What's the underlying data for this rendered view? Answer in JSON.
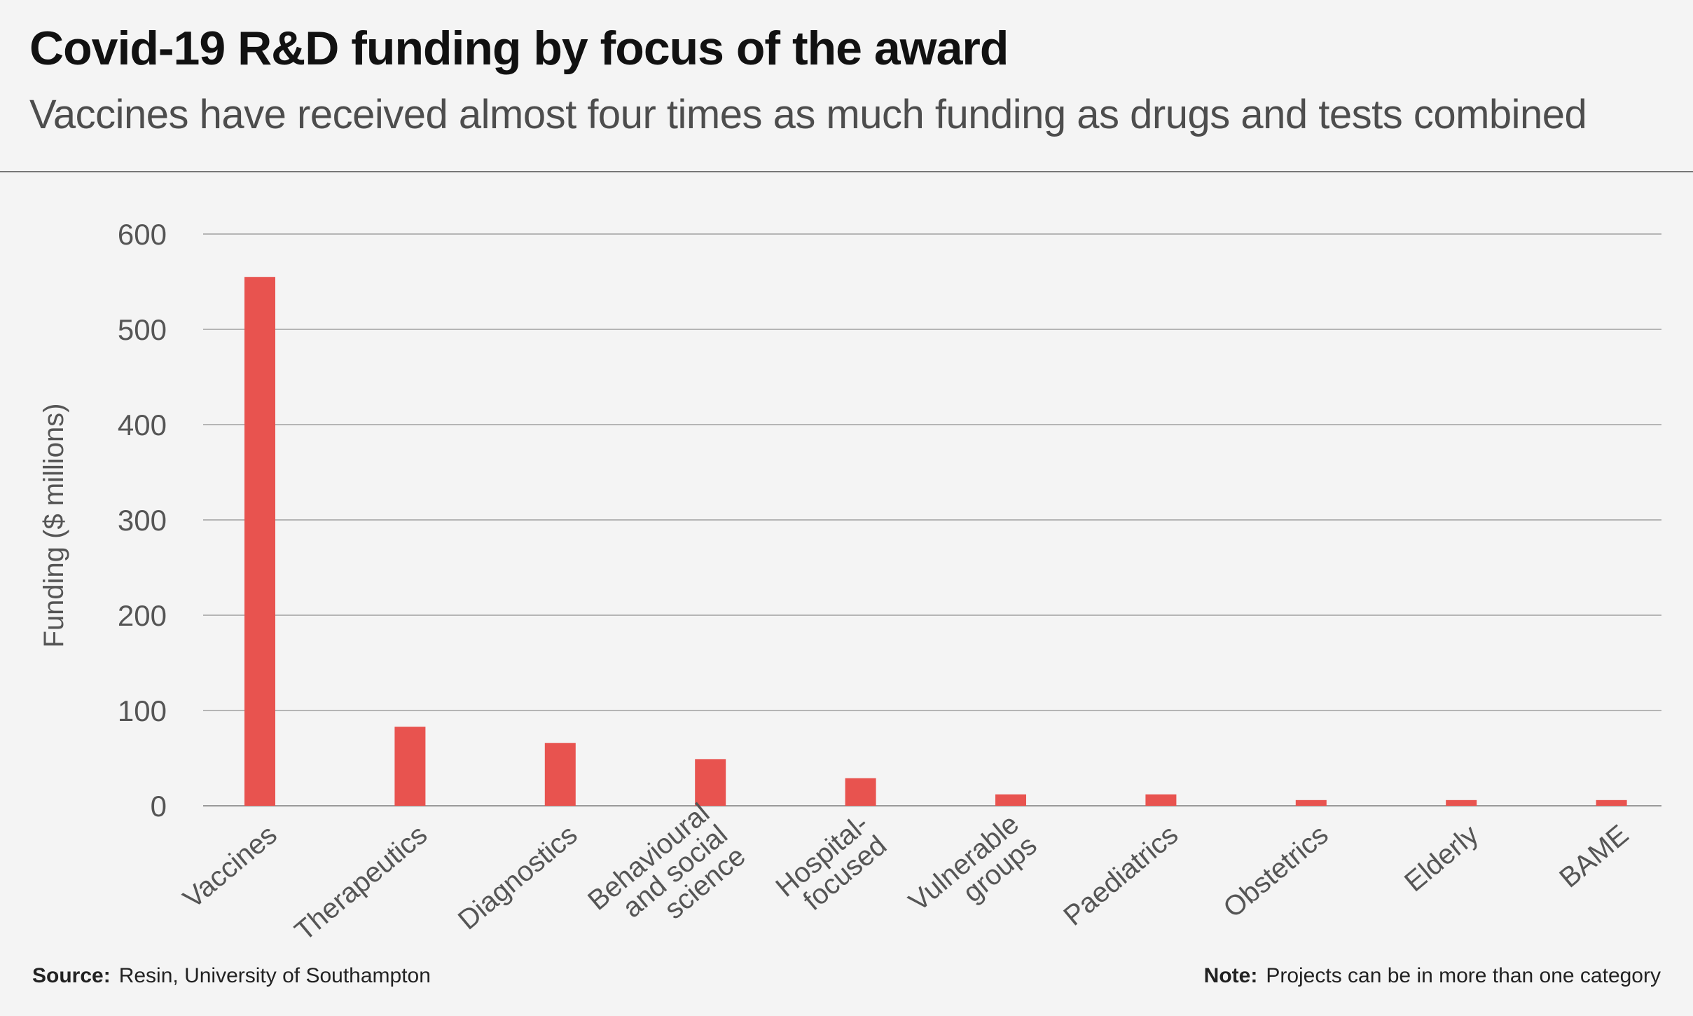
{
  "header": {
    "title": "Covid-19 R&D funding by focus of the award",
    "subtitle": "Vaccines have received almost four times as much funding as drugs and tests combined"
  },
  "footer": {
    "source_key": "Source:",
    "source_text": "Resin, University of Southampton",
    "note_key": "Note:",
    "note_text": "Projects can be in more than one category"
  },
  "colors": {
    "bar": "#e8534f",
    "gridline": "#b5b5b5",
    "background": "#f4f4f4"
  },
  "chart_data": {
    "type": "bar",
    "title": "Covid-19 R&D funding by focus of the award",
    "subtitle": "Vaccines have received almost four times as much funding as drugs and tests combined",
    "xlabel": "",
    "ylabel": "Funding ($ millions)",
    "ylim": [
      0,
      600
    ],
    "yticks": [
      "0",
      "100",
      "200",
      "300",
      "400",
      "500",
      "600"
    ],
    "grid": true,
    "categories": [
      "Vaccines",
      "Therapeutics",
      "Diagnostics",
      "Behavioural and social science",
      "Hospital-focused",
      "Vulnerable groups",
      "Paediatrics",
      "Obstetrics",
      "Elderly",
      "BAME"
    ],
    "category_label_lines": [
      [
        "Vaccines"
      ],
      [
        "Therapeutics"
      ],
      [
        "Diagnostics"
      ],
      [
        "Behavioural",
        "and social",
        "science"
      ],
      [
        "Hospital-",
        "focused"
      ],
      [
        "Vulnerable",
        "groups"
      ],
      [
        "Paediatrics"
      ],
      [
        "Obstetrics"
      ],
      [
        "Elderly"
      ],
      [
        "BAME"
      ]
    ],
    "values": [
      555,
      83,
      66,
      49,
      29,
      12,
      12,
      6,
      6,
      6
    ]
  }
}
